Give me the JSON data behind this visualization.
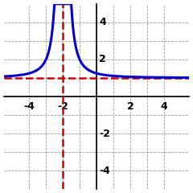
{
  "title": "",
  "xlim": [
    -5.5,
    5.5
  ],
  "ylim": [
    -5.0,
    5.0
  ],
  "xtick_labels": [
    -4,
    -2,
    2,
    4
  ],
  "ytick_labels": [
    -4,
    -2,
    2,
    4
  ],
  "grid_ticks": [
    -4,
    -3,
    -2,
    -1,
    0,
    1,
    2,
    3,
    4
  ],
  "asymptote_x": -2,
  "asymptote_y": 1,
  "func_color": "#0000cc",
  "asymptote_color": "#cc0000",
  "asymptote_lw": 1.8,
  "func_lw": 2.2,
  "background_color": "#ffffff",
  "clip_ymin": -5.0,
  "clip_ymax": 5.0,
  "label_fontsize": 9
}
